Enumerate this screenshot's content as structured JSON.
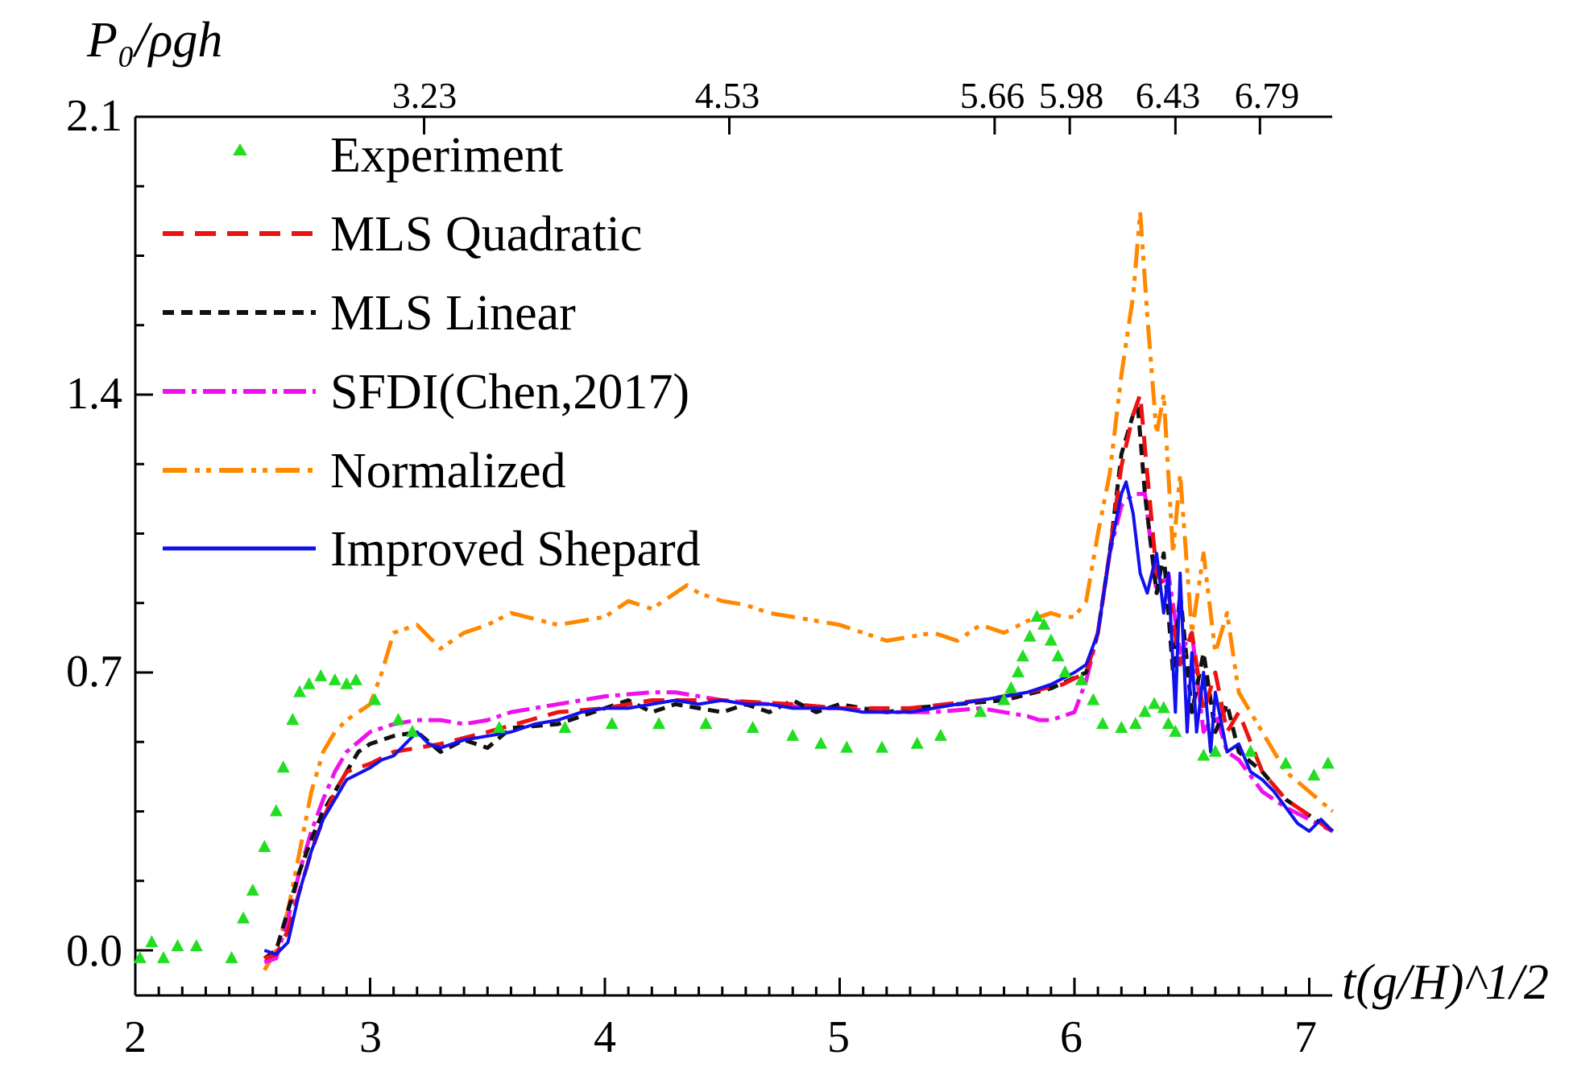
{
  "chart_data": {
    "type": "line",
    "ylabel": "P₀/ρgh",
    "xlabel": "t(g/H)^1/2",
    "xlim": [
      2,
      7.1
    ],
    "ylim": [
      -0.1,
      2.1
    ],
    "x_ticks": [
      "2",
      "3",
      "4",
      "5",
      "6",
      "7"
    ],
    "y_ticks": [
      "0.0",
      "0.7",
      "1.4",
      "2.1"
    ],
    "y_tick_values": [
      0.0,
      0.7,
      1.4,
      2.1
    ],
    "top_ticks": [
      {
        "value": 3.23,
        "label": "3.23"
      },
      {
        "value": 4.53,
        "label": "4.53"
      },
      {
        "value": 5.66,
        "label": "5.66"
      },
      {
        "value": 5.98,
        "label": "5.98"
      },
      {
        "value": 6.43,
        "label": "6.43"
      },
      {
        "value": 6.79,
        "label": "6.79"
      }
    ],
    "legend_position": "top-left",
    "series": [
      {
        "name": "Experiment",
        "kind": "markers",
        "color": "#22dd22",
        "x": [
          2.02,
          2.07,
          2.12,
          2.18,
          2.26,
          2.41,
          2.46,
          2.5,
          2.55,
          2.6,
          2.63,
          2.67,
          2.7,
          2.74,
          2.79,
          2.85,
          2.9,
          2.94,
          3.02,
          3.12,
          3.18,
          3.55,
          3.83,
          4.03,
          4.23,
          4.43,
          4.63,
          4.8,
          4.92,
          5.03,
          5.18,
          5.33,
          5.43,
          5.6,
          5.7,
          5.73,
          5.76,
          5.78,
          5.81,
          5.84,
          5.87,
          5.9,
          5.93,
          5.96,
          6.03,
          6.08,
          6.12,
          6.2,
          6.26,
          6.3,
          6.34,
          6.38,
          6.4,
          6.43,
          6.55,
          6.6,
          6.75,
          6.9,
          7.02,
          7.08
        ],
        "y": [
          -0.02,
          0.02,
          -0.02,
          0.01,
          0.01,
          -0.02,
          0.08,
          0.15,
          0.26,
          0.35,
          0.46,
          0.58,
          0.65,
          0.67,
          0.69,
          0.68,
          0.67,
          0.68,
          0.63,
          0.58,
          0.55,
          0.56,
          0.56,
          0.57,
          0.57,
          0.57,
          0.56,
          0.54,
          0.52,
          0.51,
          0.51,
          0.52,
          0.54,
          0.6,
          0.63,
          0.66,
          0.7,
          0.74,
          0.79,
          0.84,
          0.82,
          0.78,
          0.74,
          0.7,
          0.68,
          0.63,
          0.57,
          0.56,
          0.57,
          0.6,
          0.62,
          0.61,
          0.57,
          0.55,
          0.49,
          0.5,
          0.5,
          0.47,
          0.44,
          0.47
        ]
      },
      {
        "name": "MLS Quadratic",
        "kind": "line",
        "color": "#ee1111",
        "dash": "26 14",
        "x": [
          2.55,
          2.6,
          2.65,
          2.7,
          2.75,
          2.8,
          2.85,
          2.9,
          3.0,
          3.1,
          3.3,
          3.5,
          3.8,
          4.0,
          4.2,
          4.5,
          4.8,
          5.0,
          5.3,
          5.6,
          5.8,
          5.95,
          6.05,
          6.1,
          6.15,
          6.2,
          6.25,
          6.28,
          6.31,
          6.35,
          6.4,
          6.45,
          6.5,
          6.55,
          6.6,
          6.65,
          6.7,
          6.8,
          6.9,
          7.0,
          7.1
        ],
        "y": [
          -0.02,
          -0.01,
          0.05,
          0.15,
          0.25,
          0.33,
          0.4,
          0.45,
          0.47,
          0.5,
          0.52,
          0.55,
          0.6,
          0.61,
          0.63,
          0.63,
          0.62,
          0.61,
          0.61,
          0.63,
          0.65,
          0.67,
          0.7,
          0.8,
          1.0,
          1.22,
          1.35,
          1.4,
          1.2,
          0.95,
          0.9,
          0.72,
          0.8,
          0.6,
          0.7,
          0.55,
          0.6,
          0.45,
          0.38,
          0.34,
          0.3
        ]
      },
      {
        "name": "MLS Linear",
        "kind": "line",
        "color": "#111111",
        "dash": "14 9",
        "x": [
          2.55,
          2.6,
          2.65,
          2.7,
          2.75,
          2.8,
          2.85,
          2.9,
          2.95,
          3.0,
          3.1,
          3.2,
          3.3,
          3.4,
          3.5,
          3.6,
          3.8,
          4.0,
          4.1,
          4.2,
          4.3,
          4.4,
          4.5,
          4.6,
          4.7,
          4.8,
          4.9,
          5.0,
          5.1,
          5.2,
          5.3,
          5.5,
          5.7,
          5.9,
          6.05,
          6.1,
          6.15,
          6.2,
          6.25,
          6.27,
          6.3,
          6.35,
          6.38,
          6.42,
          6.45,
          6.5,
          6.55,
          6.6,
          6.65,
          6.7,
          6.8,
          6.9,
          7.0,
          7.1
        ],
        "y": [
          -0.02,
          0.0,
          0.1,
          0.2,
          0.28,
          0.35,
          0.4,
          0.45,
          0.5,
          0.52,
          0.54,
          0.55,
          0.5,
          0.53,
          0.51,
          0.56,
          0.57,
          0.61,
          0.63,
          0.6,
          0.62,
          0.61,
          0.6,
          0.62,
          0.6,
          0.63,
          0.6,
          0.62,
          0.61,
          0.6,
          0.61,
          0.62,
          0.63,
          0.66,
          0.7,
          0.8,
          1.0,
          1.25,
          1.35,
          1.37,
          1.15,
          0.9,
          1.0,
          0.7,
          0.9,
          0.6,
          0.75,
          0.55,
          0.62,
          0.5,
          0.45,
          0.38,
          0.34,
          0.3
        ]
      },
      {
        "name": "SFDI(Chen,2017)",
        "kind": "line",
        "color": "#ee11ee",
        "dash": "28 8 6 8",
        "x": [
          2.55,
          2.6,
          2.65,
          2.7,
          2.75,
          2.8,
          2.85,
          2.9,
          3.0,
          3.1,
          3.2,
          3.3,
          3.4,
          3.5,
          3.6,
          3.8,
          4.0,
          4.2,
          4.3,
          4.5,
          4.7,
          4.9,
          5.0,
          5.2,
          5.4,
          5.6,
          5.7,
          5.8,
          5.85,
          5.9,
          6.0,
          6.05,
          6.1,
          6.15,
          6.2,
          6.25,
          6.3,
          6.35,
          6.4,
          6.45,
          6.5,
          6.55,
          6.6,
          6.65,
          6.7,
          6.8,
          6.9,
          7.0,
          7.1
        ],
        "y": [
          -0.03,
          -0.02,
          0.08,
          0.2,
          0.3,
          0.38,
          0.45,
          0.5,
          0.55,
          0.57,
          0.58,
          0.58,
          0.57,
          0.58,
          0.6,
          0.62,
          0.64,
          0.65,
          0.65,
          0.63,
          0.62,
          0.61,
          0.61,
          0.6,
          0.6,
          0.61,
          0.6,
          0.59,
          0.58,
          0.58,
          0.6,
          0.68,
          0.8,
          1.0,
          1.12,
          1.15,
          1.15,
          0.9,
          0.95,
          0.75,
          0.8,
          0.55,
          0.6,
          0.5,
          0.48,
          0.4,
          0.36,
          0.33,
          0.3
        ]
      },
      {
        "name": "Normalized",
        "kind": "line",
        "color": "#ff8800",
        "dash": "30 10 6 8 6 10",
        "x": [
          2.55,
          2.6,
          2.65,
          2.7,
          2.75,
          2.8,
          2.85,
          2.9,
          3.0,
          3.05,
          3.1,
          3.2,
          3.3,
          3.4,
          3.5,
          3.6,
          3.8,
          4.0,
          4.1,
          4.2,
          4.3,
          4.35,
          4.4,
          4.5,
          4.6,
          4.7,
          4.8,
          4.9,
          5.0,
          5.1,
          5.2,
          5.3,
          5.4,
          5.5,
          5.6,
          5.7,
          5.8,
          5.9,
          5.95,
          6.0,
          6.05,
          6.1,
          6.15,
          6.2,
          6.25,
          6.28,
          6.31,
          6.35,
          6.38,
          6.42,
          6.45,
          6.5,
          6.55,
          6.6,
          6.65,
          6.7,
          6.8,
          6.9,
          7.0,
          7.1
        ],
        "y": [
          -0.05,
          0.0,
          0.1,
          0.25,
          0.4,
          0.5,
          0.55,
          0.58,
          0.62,
          0.7,
          0.8,
          0.82,
          0.76,
          0.8,
          0.82,
          0.85,
          0.82,
          0.84,
          0.88,
          0.86,
          0.9,
          0.92,
          0.9,
          0.88,
          0.87,
          0.85,
          0.84,
          0.83,
          0.82,
          0.8,
          0.78,
          0.79,
          0.8,
          0.78,
          0.82,
          0.8,
          0.83,
          0.85,
          0.84,
          0.84,
          0.88,
          1.05,
          1.2,
          1.45,
          1.65,
          1.86,
          1.6,
          1.3,
          1.4,
          1.0,
          1.2,
          0.8,
          1.0,
          0.75,
          0.85,
          0.65,
          0.55,
          0.45,
          0.4,
          0.35
        ]
      },
      {
        "name": "Improved Shepard",
        "kind": "line",
        "color": "#1111ee",
        "dash": "",
        "x": [
          2.55,
          2.6,
          2.65,
          2.7,
          2.75,
          2.8,
          2.85,
          2.9,
          3.0,
          3.05,
          3.1,
          3.15,
          3.2,
          3.25,
          3.3,
          3.4,
          3.5,
          3.6,
          3.7,
          3.8,
          3.9,
          4.0,
          4.1,
          4.2,
          4.3,
          4.4,
          4.5,
          4.6,
          4.7,
          4.8,
          4.9,
          5.0,
          5.1,
          5.2,
          5.3,
          5.4,
          5.5,
          5.6,
          5.7,
          5.8,
          5.9,
          6.0,
          6.05,
          6.1,
          6.15,
          6.2,
          6.22,
          6.25,
          6.28,
          6.31,
          6.35,
          6.38,
          6.4,
          6.43,
          6.45,
          6.48,
          6.5,
          6.52,
          6.55,
          6.58,
          6.6,
          6.65,
          6.7,
          6.75,
          6.8,
          6.85,
          6.9,
          6.95,
          7.0,
          7.05,
          7.1
        ],
        "y": [
          0.0,
          -0.01,
          0.02,
          0.15,
          0.25,
          0.33,
          0.38,
          0.43,
          0.46,
          0.48,
          0.49,
          0.52,
          0.55,
          0.52,
          0.51,
          0.53,
          0.54,
          0.55,
          0.57,
          0.58,
          0.6,
          0.61,
          0.61,
          0.62,
          0.63,
          0.62,
          0.63,
          0.62,
          0.62,
          0.61,
          0.61,
          0.61,
          0.6,
          0.6,
          0.6,
          0.61,
          0.62,
          0.63,
          0.64,
          0.65,
          0.67,
          0.7,
          0.72,
          0.8,
          1.0,
          1.15,
          1.18,
          1.1,
          0.95,
          0.9,
          1.0,
          0.85,
          0.95,
          0.6,
          0.95,
          0.55,
          0.75,
          0.55,
          0.7,
          0.5,
          0.65,
          0.5,
          0.52,
          0.45,
          0.43,
          0.4,
          0.36,
          0.32,
          0.3,
          0.33,
          0.3
        ]
      }
    ]
  }
}
